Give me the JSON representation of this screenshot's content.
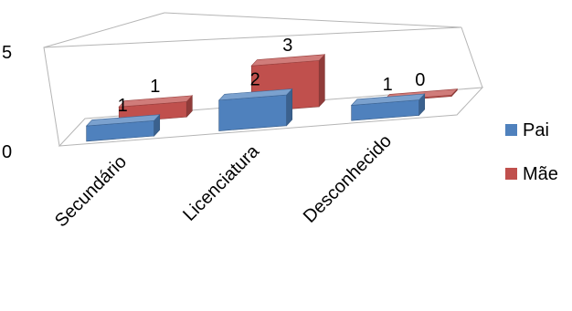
{
  "chart_data": {
    "type": "bar",
    "style": "3d-clustered",
    "categories": [
      "Secundário",
      "Licenciatura",
      "Desconhecido"
    ],
    "series": [
      {
        "name": "Pai",
        "values": [
          1,
          2,
          1
        ],
        "color": "#4F81BD"
      },
      {
        "name": "Mãe",
        "values": [
          1,
          3,
          0
        ],
        "color": "#C0504D"
      }
    ],
    "ylim": [
      0,
      5
    ],
    "yticks": [
      "0",
      "5"
    ],
    "title": "",
    "xlabel": "",
    "ylabel": "",
    "legend": "right",
    "grid": true
  }
}
